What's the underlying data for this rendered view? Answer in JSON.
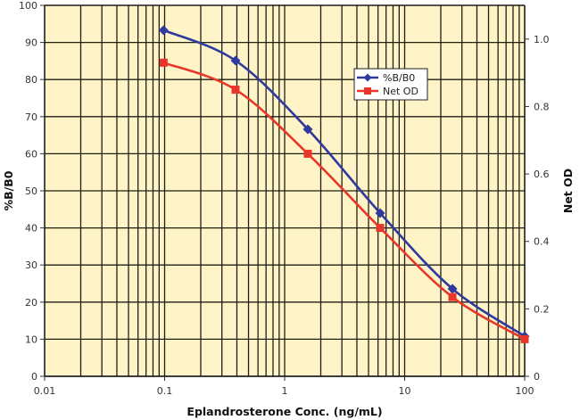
{
  "chart_data": {
    "type": "line",
    "title": "",
    "xlabel": "Eplandrosterone Conc. (ng/mL)",
    "ylabel": "%B/B0",
    "y2label": "Net OD",
    "xscale": "log",
    "xlim": [
      0.01,
      100
    ],
    "ylim": [
      0,
      100
    ],
    "y2lim": [
      0,
      1.1
    ],
    "x_ticks": [
      "0.01",
      "0.1",
      "1",
      "10",
      "100"
    ],
    "y_ticks": [
      "0",
      "10",
      "20",
      "30",
      "40",
      "50",
      "60",
      "70",
      "80",
      "90",
      "100"
    ],
    "y2_ticks": [
      "0",
      "0.2",
      "0.4",
      "0.6",
      "0.8",
      "1.0"
    ],
    "grid": true,
    "legend_position": "upper right (inside)",
    "x": [
      0.098,
      0.39,
      1.56,
      6.25,
      25,
      100
    ],
    "series": [
      {
        "name": "%B/B0",
        "axis": "left",
        "color": "#2E3A9E",
        "marker": "diamond",
        "values": [
          93.3,
          85.1,
          66.6,
          44.0,
          23.6,
          10.8
        ]
      },
      {
        "name": "Net OD",
        "axis": "right",
        "color": "#E8372A",
        "marker": "square",
        "values": [
          0.93,
          0.85,
          0.66,
          0.44,
          0.235,
          0.11
        ]
      }
    ]
  },
  "labels": {
    "xlabel": "Eplandrosterone Conc. (ng/mL)",
    "ylabel": "%B/B0",
    "y2label": "Net OD",
    "legend": [
      "%B/B0",
      "Net OD"
    ]
  },
  "style": {
    "plot_bg": "#FFF4C8",
    "grid_color": "#1f1f14",
    "series_colors": [
      "#2E3A9E",
      "#E8372A"
    ]
  }
}
